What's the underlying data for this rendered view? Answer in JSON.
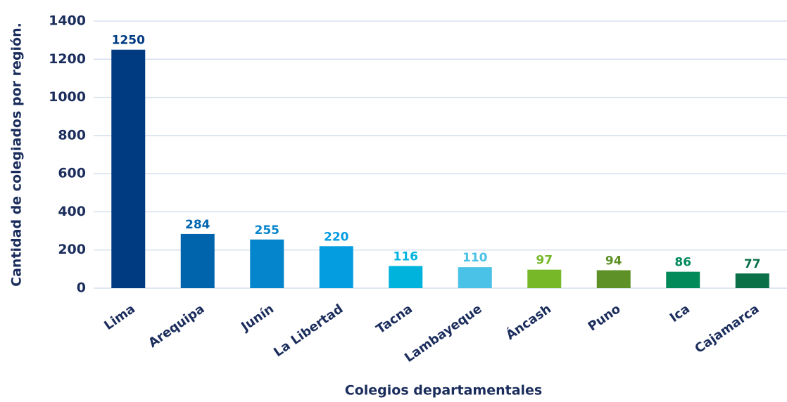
{
  "chart_data": {
    "type": "bar",
    "xlabel": "Colegios departamentales",
    "ylabel": "Cantidad de colegiados por región.",
    "categories": [
      "Lima",
      "Arequipa",
      "Junín",
      "La Libertad",
      "Tacna",
      "Lambayeque",
      "Áncash",
      "Puno",
      "Ica",
      "Cajamarca"
    ],
    "values": [
      1250,
      284,
      255,
      220,
      116,
      110,
      97,
      94,
      86,
      77
    ],
    "colors": [
      "#003a80",
      "#0064ad",
      "#0585cc",
      "#039de0",
      "#00b3dd",
      "#4ac1e6",
      "#77b829",
      "#5e9229",
      "#028a5a",
      "#0a7048"
    ],
    "ylim": [
      0,
      1400
    ],
    "yticks": [
      0,
      200,
      400,
      600,
      800,
      1000,
      1200,
      1400
    ],
    "grid": true
  }
}
